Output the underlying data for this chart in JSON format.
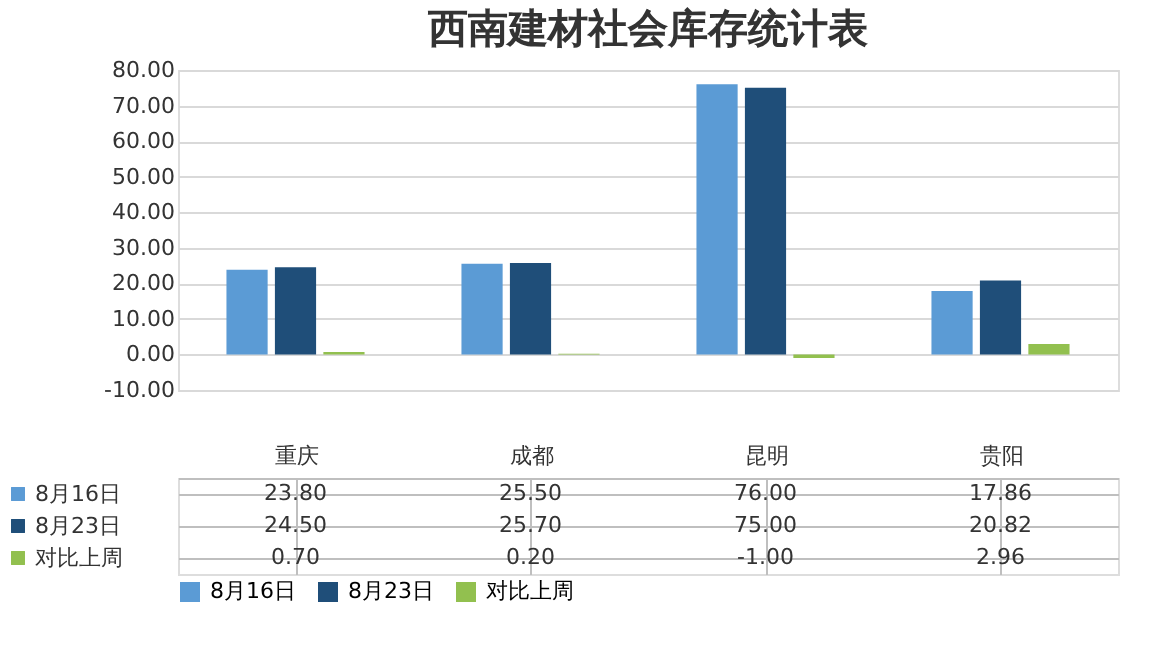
{
  "chart_data": {
    "type": "bar",
    "title": "西南建材社会库存统计表",
    "categories": [
      "重庆",
      "成都",
      "昆明",
      "贵阳"
    ],
    "series": [
      {
        "name": "8月16日",
        "color": "#5b9bd5",
        "values": [
          23.8,
          25.5,
          76.0,
          17.86
        ],
        "value_labels": [
          "23.80",
          "25.50",
          "76.00",
          "17.86"
        ]
      },
      {
        "name": "8月23日",
        "color": "#1f4e79",
        "values": [
          24.5,
          25.7,
          75.0,
          20.82
        ],
        "value_labels": [
          "24.50",
          "25.70",
          "75.00",
          "20.82"
        ]
      },
      {
        "name": "对比上周",
        "color": "#92c04f",
        "values": [
          0.7,
          0.2,
          -1.0,
          2.96
        ],
        "value_labels": [
          "0.70",
          "0.20",
          "-1.00",
          "2.96"
        ]
      }
    ],
    "ylim": [
      -10,
      80
    ],
    "yticks": [
      {
        "value": -10,
        "label": "-10.00"
      },
      {
        "value": 0,
        "label": "0.00"
      },
      {
        "value": 10,
        "label": "10.00"
      },
      {
        "value": 20,
        "label": "20.00"
      },
      {
        "value": 30,
        "label": "30.00"
      },
      {
        "value": 40,
        "label": "40.00"
      },
      {
        "value": 50,
        "label": "50.00"
      },
      {
        "value": 60,
        "label": "60.00"
      },
      {
        "value": 70,
        "label": "70.00"
      },
      {
        "value": 80,
        "label": "80.00"
      }
    ],
    "grid": "y",
    "legend": "bottom"
  }
}
